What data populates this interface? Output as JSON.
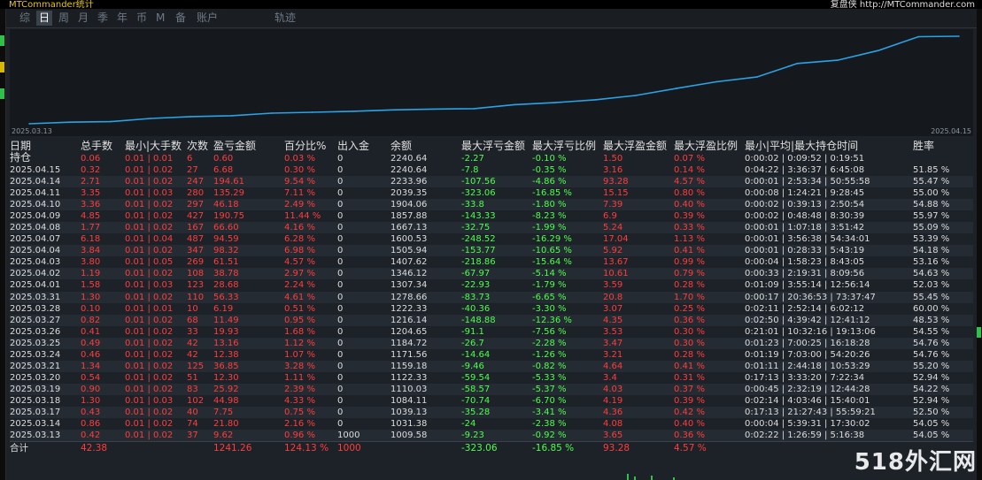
{
  "app_title": "MTCommander统计",
  "brand_text": "复盘侠 http://MTCommander.com",
  "tabs": [
    {
      "label": "综",
      "active": false
    },
    {
      "label": "日",
      "active": true
    },
    {
      "label": "周",
      "active": false
    },
    {
      "label": "月",
      "active": false
    },
    {
      "label": "季",
      "active": false
    },
    {
      "label": "年",
      "active": false
    },
    {
      "label": "币",
      "active": false
    },
    {
      "label": "M",
      "active": false
    },
    {
      "label": "备",
      "active": false
    },
    {
      "label": "账户",
      "active": false
    },
    {
      "label": "轨迹",
      "active": false
    }
  ],
  "chart_data": {
    "type": "line",
    "x_start_label": "2025.03.13",
    "x_end_label": "2025.04.15",
    "line_color": "#2aa3e6",
    "x": [
      "2025.03.13",
      "2025.03.14",
      "2025.03.17",
      "2025.03.18",
      "2025.03.19",
      "2025.03.20",
      "2025.03.21",
      "2025.03.24",
      "2025.03.25",
      "2025.03.26",
      "2025.03.27",
      "2025.03.28",
      "2025.03.31",
      "2025.04.01",
      "2025.04.02",
      "2025.04.03",
      "2025.04.04",
      "2025.04.07",
      "2025.04.08",
      "2025.04.09",
      "2025.04.10",
      "2025.04.11",
      "2025.04.14",
      "2025.04.15"
    ],
    "values": [
      1009.58,
      1031.38,
      1039.13,
      1084.11,
      1110.03,
      1122.33,
      1159.18,
      1171.56,
      1184.72,
      1204.65,
      1216.14,
      1222.33,
      1278.66,
      1307.34,
      1346.12,
      1407.62,
      1505.94,
      1600.53,
      1667.13,
      1857.88,
      1904.06,
      2039.35,
      2233.96,
      2240.64
    ],
    "grid": false,
    "legend": "none"
  },
  "table": {
    "headers": {
      "date": "日期",
      "position": "持仓",
      "lots": "总手数",
      "minmax_lots": "最小|大手数",
      "count": "次数",
      "pnl": "盈亏金额",
      "pct": "百分比%",
      "inout": "出入金",
      "balance": "余额",
      "max_float_loss": "最大浮亏金额",
      "max_float_loss_pct": "最大浮亏比例",
      "max_float_profit": "最大浮盈金额",
      "max_float_profit_pct": "最大浮盈比例",
      "hold_time": "最小|平均|最大持仓时间",
      "winrate": "胜率"
    },
    "header_row": {
      "date": "",
      "lots": "0.06",
      "minmax": "0.01 | 0.01",
      "count": "6",
      "pnl": "0.60",
      "pct": "0.03 %",
      "inout": "0",
      "balance": "2240.64",
      "mfl": "-2.27",
      "mflp": "-0.10 %",
      "mfp": "1.50",
      "mfpp": "0.07 %",
      "hold": "0:00:02 | 0:09:52 | 0:19:51",
      "win": ""
    },
    "rows": [
      {
        "date": "2025.04.15",
        "lots": "0.32",
        "minmax": "0.01 | 0.02",
        "count": "27",
        "pnl": "6.68",
        "pct": "0.30 %",
        "inout": "0",
        "balance": "2240.64",
        "mfl": "-7.8",
        "mflp": "-0.35 %",
        "mfp": "3.16",
        "mfpp": "0.14 %",
        "hold": "0:04:22 | 3:36:37 | 6:45:08",
        "win": "51.85 %"
      },
      {
        "date": "2025.04.14",
        "lots": "2.71",
        "minmax": "0.01 | 0.02",
        "count": "247",
        "pnl": "194.61",
        "pct": "9.54 %",
        "inout": "0",
        "balance": "2233.96",
        "mfl": "-107.56",
        "mflp": "-4.86 %",
        "mfp": "93.28",
        "mfpp": "4.57 %",
        "hold": "0:00:01 | 2:53:34 | 50:55:58",
        "win": "55.47 %"
      },
      {
        "date": "2025.04.11",
        "lots": "3.35",
        "minmax": "0.01 | 0.03",
        "count": "280",
        "pnl": "135.29",
        "pct": "7.11 %",
        "inout": "0",
        "balance": "2039.35",
        "mfl": "-323.06",
        "mflp": "-16.85 %",
        "mfp": "15.15",
        "mfpp": "0.80 %",
        "hold": "0:00:08 | 1:24:21 | 9:28:45",
        "win": "55.00 %"
      },
      {
        "date": "2025.04.10",
        "lots": "3.36",
        "minmax": "0.01 | 0.02",
        "count": "297",
        "pnl": "46.18",
        "pct": "2.49 %",
        "inout": "0",
        "balance": "1904.06",
        "mfl": "-33.8",
        "mflp": "-1.80 %",
        "mfp": "7.39",
        "mfpp": "0.40 %",
        "hold": "0:00:02 | 0:39:13 | 2:50:54",
        "win": "54.88 %"
      },
      {
        "date": "2025.04.09",
        "lots": "4.85",
        "minmax": "0.01 | 0.02",
        "count": "427",
        "pnl": "190.75",
        "pct": "11.44 %",
        "inout": "0",
        "balance": "1857.88",
        "mfl": "-143.33",
        "mflp": "-8.23 %",
        "mfp": "6.9",
        "mfpp": "0.39 %",
        "hold": "0:00:02 | 0:48:48 | 8:30:39",
        "win": "55.97 %"
      },
      {
        "date": "2025.04.08",
        "lots": "1.77",
        "minmax": "0.01 | 0.02",
        "count": "167",
        "pnl": "66.60",
        "pct": "4.16 %",
        "inout": "0",
        "balance": "1667.13",
        "mfl": "-32.75",
        "mflp": "-1.99 %",
        "mfp": "5.24",
        "mfpp": "0.33 %",
        "hold": "0:00:01 | 1:07:18 | 3:51:42",
        "win": "55.09 %"
      },
      {
        "date": "2025.04.07",
        "lots": "6.18",
        "minmax": "0.01 | 0.04",
        "count": "487",
        "pnl": "94.59",
        "pct": "6.28 %",
        "inout": "0",
        "balance": "1600.53",
        "mfl": "-248.52",
        "mflp": "-16.29 %",
        "mfp": "17.04",
        "mfpp": "1.13 %",
        "hold": "0:00:01 | 3:56:38 | 54:34:01",
        "win": "53.39 %"
      },
      {
        "date": "2025.04.04",
        "lots": "3.84",
        "minmax": "0.01 | 0.02",
        "count": "347",
        "pnl": "98.32",
        "pct": "6.98 %",
        "inout": "0",
        "balance": "1505.94",
        "mfl": "-153.77",
        "mflp": "-10.65 %",
        "mfp": "5.92",
        "mfpp": "0.41 %",
        "hold": "0:00:01 | 0:28:33 | 5:43:19",
        "win": "54.18 %"
      },
      {
        "date": "2025.04.03",
        "lots": "3.80",
        "minmax": "0.01 | 0.05",
        "count": "269",
        "pnl": "61.51",
        "pct": "4.57 %",
        "inout": "0",
        "balance": "1407.62",
        "mfl": "-218.86",
        "mflp": "-15.64 %",
        "mfp": "13.67",
        "mfpp": "0.99 %",
        "hold": "0:00:04 | 1:58:23 | 8:43:05",
        "win": "53.16 %"
      },
      {
        "date": "2025.04.02",
        "lots": "1.19",
        "minmax": "0.01 | 0.02",
        "count": "108",
        "pnl": "38.78",
        "pct": "2.97 %",
        "inout": "0",
        "balance": "1346.12",
        "mfl": "-67.97",
        "mflp": "-5.14 %",
        "mfp": "10.61",
        "mfpp": "0.79 %",
        "hold": "0:00:33 | 2:19:31 | 8:09:56",
        "win": "54.63 %"
      },
      {
        "date": "2025.04.01",
        "lots": "1.58",
        "minmax": "0.01 | 0.03",
        "count": "123",
        "pnl": "28.68",
        "pct": "2.24 %",
        "inout": "0",
        "balance": "1307.34",
        "mfl": "-22.93",
        "mflp": "-1.79 %",
        "mfp": "3.59",
        "mfpp": "0.28 %",
        "hold": "0:01:09 | 3:55:14 | 12:56:14",
        "win": "52.03 %"
      },
      {
        "date": "2025.03.31",
        "lots": "1.30",
        "minmax": "0.01 | 0.02",
        "count": "110",
        "pnl": "56.33",
        "pct": "4.61 %",
        "inout": "0",
        "balance": "1278.66",
        "mfl": "-83.73",
        "mflp": "-6.65 %",
        "mfp": "20.8",
        "mfpp": "1.70 %",
        "hold": "0:00:17 | 20:36:53 | 73:37:47",
        "win": "55.45 %"
      },
      {
        "date": "2025.03.28",
        "lots": "0.10",
        "minmax": "0.01 | 0.01",
        "count": "10",
        "pnl": "6.19",
        "pct": "0.51 %",
        "inout": "0",
        "balance": "1222.33",
        "mfl": "-40.36",
        "mflp": "-3.30 %",
        "mfp": "3.07",
        "mfpp": "0.25 %",
        "hold": "0:02:11 | 2:52:14 | 6:02:12",
        "win": "60.00 %"
      },
      {
        "date": "2025.03.27",
        "lots": "0.82",
        "minmax": "0.01 | 0.02",
        "count": "68",
        "pnl": "11.49",
        "pct": "0.95 %",
        "inout": "0",
        "balance": "1216.14",
        "mfl": "-148.88",
        "mflp": "-12.36 %",
        "mfp": "4.35",
        "mfpp": "0.36 %",
        "hold": "0:02:50 | 4:39:42 | 12:41:12",
        "win": "48.53 %"
      },
      {
        "date": "2025.03.26",
        "lots": "0.41",
        "minmax": "0.01 | 0.02",
        "count": "33",
        "pnl": "19.93",
        "pct": "1.68 %",
        "inout": "0",
        "balance": "1204.65",
        "mfl": "-91.1",
        "mflp": "-7.56 %",
        "mfp": "3.53",
        "mfpp": "0.30 %",
        "hold": "0:21:01 | 10:32:16 | 19:13:06",
        "win": "54.55 %"
      },
      {
        "date": "2025.03.25",
        "lots": "0.49",
        "minmax": "0.01 | 0.02",
        "count": "42",
        "pnl": "13.16",
        "pct": "1.12 %",
        "inout": "0",
        "balance": "1184.72",
        "mfl": "-26.7",
        "mflp": "-2.28 %",
        "mfp": "3.47",
        "mfpp": "0.30 %",
        "hold": "0:01:23 | 7:00:25 | 16:18:28",
        "win": "54.76 %"
      },
      {
        "date": "2025.03.24",
        "lots": "0.46",
        "minmax": "0.01 | 0.02",
        "count": "42",
        "pnl": "12.38",
        "pct": "1.07 %",
        "inout": "0",
        "balance": "1171.56",
        "mfl": "-14.64",
        "mflp": "-1.26 %",
        "mfp": "3.21",
        "mfpp": "0.28 %",
        "hold": "0:01:19 | 7:03:00 | 54:20:26",
        "win": "54.76 %"
      },
      {
        "date": "2025.03.21",
        "lots": "1.34",
        "minmax": "0.01 | 0.02",
        "count": "125",
        "pnl": "36.85",
        "pct": "3.28 %",
        "inout": "0",
        "balance": "1159.18",
        "mfl": "-9.46",
        "mflp": "-0.82 %",
        "mfp": "4.64",
        "mfpp": "0.41 %",
        "hold": "0:01:11 | 2:44:18 | 10:53:29",
        "win": "55.20 %"
      },
      {
        "date": "2025.03.20",
        "lots": "0.54",
        "minmax": "0.01 | 0.02",
        "count": "51",
        "pnl": "12.30",
        "pct": "1.11 %",
        "inout": "0",
        "balance": "1122.33",
        "mfl": "-59.54",
        "mflp": "-5.33 %",
        "mfp": "3.4",
        "mfpp": "0.31 %",
        "hold": "0:17:13 | 3:33:20 | 7:22:34",
        "win": "52.94 %"
      },
      {
        "date": "2025.03.19",
        "lots": "0.90",
        "minmax": "0.01 | 0.02",
        "count": "83",
        "pnl": "25.92",
        "pct": "2.39 %",
        "inout": "0",
        "balance": "1110.03",
        "mfl": "-58.57",
        "mflp": "-5.37 %",
        "mfp": "4.03",
        "mfpp": "0.37 %",
        "hold": "0:00:45 | 2:32:19 | 12:44:28",
        "win": "54.22 %"
      },
      {
        "date": "2025.03.18",
        "lots": "1.30",
        "minmax": "0.01 | 0.03",
        "count": "102",
        "pnl": "44.98",
        "pct": "4.33 %",
        "inout": "0",
        "balance": "1084.11",
        "mfl": "-70.74",
        "mflp": "-6.70 %",
        "mfp": "4.19",
        "mfpp": "0.39 %",
        "hold": "0:02:14 | 4:03:46 | 15:40:01",
        "win": "52.94 %"
      },
      {
        "date": "2025.03.17",
        "lots": "0.43",
        "minmax": "0.01 | 0.02",
        "count": "40",
        "pnl": "7.75",
        "pct": "0.75 %",
        "inout": "0",
        "balance": "1039.13",
        "mfl": "-35.28",
        "mflp": "-3.41 %",
        "mfp": "4.36",
        "mfpp": "0.42 %",
        "hold": "0:17:13 | 21:27:43 | 55:59:21",
        "win": "52.50 %"
      },
      {
        "date": "2025.03.14",
        "lots": "0.86",
        "minmax": "0.01 | 0.02",
        "count": "74",
        "pnl": "21.80",
        "pct": "2.16 %",
        "inout": "0",
        "balance": "1031.38",
        "mfl": "-24",
        "mflp": "-2.38 %",
        "mfp": "4.08",
        "mfpp": "0.40 %",
        "hold": "0:00:04 | 5:39:31 | 17:30:02",
        "win": "54.05 %"
      },
      {
        "date": "2025.03.13",
        "lots": "0.42",
        "minmax": "0.01 | 0.02",
        "count": "37",
        "pnl": "9.62",
        "pct": "0.96 %",
        "inout": "1000",
        "balance": "1009.58",
        "mfl": "-9.23",
        "mflp": "-0.92 %",
        "mfp": "3.65",
        "mfpp": "0.36 %",
        "hold": "0:02:22 | 1:26:59 | 5:16:38",
        "win": "54.05 %"
      }
    ],
    "total": {
      "label": "合计",
      "lots": "42.38",
      "pnl": "1241.26",
      "pct": "124.13 %",
      "inout": "1000",
      "mfl": "-323.06",
      "mflp": "-16.85 %",
      "mfp": "93.28",
      "mfpp": "4.57 %"
    }
  },
  "watermark": "518外汇网",
  "colors": {
    "background": "#1d2228",
    "positive": "#ff3d3d",
    "negative": "#4cff4c",
    "line": "#2aa3e6",
    "title": "#e6c800"
  }
}
